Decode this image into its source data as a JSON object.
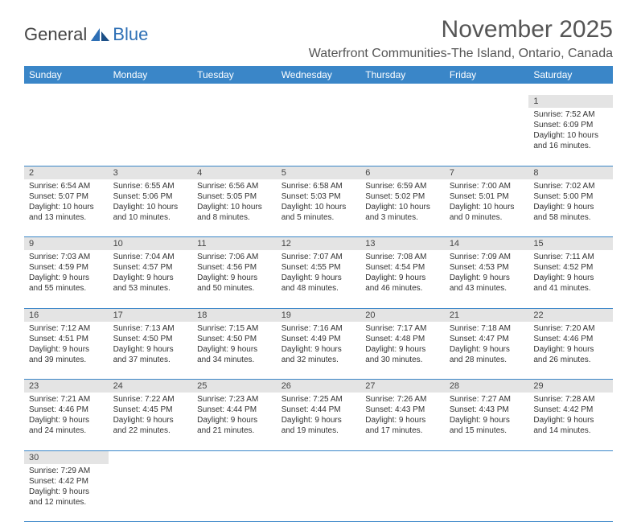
{
  "logo": {
    "part1": "General",
    "part2": "Blue"
  },
  "title": "November 2025",
  "location": "Waterfront Communities-The Island, Ontario, Canada",
  "colors": {
    "header_bg": "#3a86c8",
    "header_fg": "#ffffff",
    "daynum_bg": "#e4e4e4",
    "rule": "#3a86c8",
    "text": "#333333",
    "logo_blue": "#2d6fb5"
  },
  "daysOfWeek": [
    "Sunday",
    "Monday",
    "Tuesday",
    "Wednesday",
    "Thursday",
    "Friday",
    "Saturday"
  ],
  "firstDayOffset": 6,
  "daysInMonth": 30,
  "cells": {
    "1": {
      "sunrise": "7:52 AM",
      "sunset": "6:09 PM",
      "daylight": "10 hours and 16 minutes."
    },
    "2": {
      "sunrise": "6:54 AM",
      "sunset": "5:07 PM",
      "daylight": "10 hours and 13 minutes."
    },
    "3": {
      "sunrise": "6:55 AM",
      "sunset": "5:06 PM",
      "daylight": "10 hours and 10 minutes."
    },
    "4": {
      "sunrise": "6:56 AM",
      "sunset": "5:05 PM",
      "daylight": "10 hours and 8 minutes."
    },
    "5": {
      "sunrise": "6:58 AM",
      "sunset": "5:03 PM",
      "daylight": "10 hours and 5 minutes."
    },
    "6": {
      "sunrise": "6:59 AM",
      "sunset": "5:02 PM",
      "daylight": "10 hours and 3 minutes."
    },
    "7": {
      "sunrise": "7:00 AM",
      "sunset": "5:01 PM",
      "daylight": "10 hours and 0 minutes."
    },
    "8": {
      "sunrise": "7:02 AM",
      "sunset": "5:00 PM",
      "daylight": "9 hours and 58 minutes."
    },
    "9": {
      "sunrise": "7:03 AM",
      "sunset": "4:59 PM",
      "daylight": "9 hours and 55 minutes."
    },
    "10": {
      "sunrise": "7:04 AM",
      "sunset": "4:57 PM",
      "daylight": "9 hours and 53 minutes."
    },
    "11": {
      "sunrise": "7:06 AM",
      "sunset": "4:56 PM",
      "daylight": "9 hours and 50 minutes."
    },
    "12": {
      "sunrise": "7:07 AM",
      "sunset": "4:55 PM",
      "daylight": "9 hours and 48 minutes."
    },
    "13": {
      "sunrise": "7:08 AM",
      "sunset": "4:54 PM",
      "daylight": "9 hours and 46 minutes."
    },
    "14": {
      "sunrise": "7:09 AM",
      "sunset": "4:53 PM",
      "daylight": "9 hours and 43 minutes."
    },
    "15": {
      "sunrise": "7:11 AM",
      "sunset": "4:52 PM",
      "daylight": "9 hours and 41 minutes."
    },
    "16": {
      "sunrise": "7:12 AM",
      "sunset": "4:51 PM",
      "daylight": "9 hours and 39 minutes."
    },
    "17": {
      "sunrise": "7:13 AM",
      "sunset": "4:50 PM",
      "daylight": "9 hours and 37 minutes."
    },
    "18": {
      "sunrise": "7:15 AM",
      "sunset": "4:50 PM",
      "daylight": "9 hours and 34 minutes."
    },
    "19": {
      "sunrise": "7:16 AM",
      "sunset": "4:49 PM",
      "daylight": "9 hours and 32 minutes."
    },
    "20": {
      "sunrise": "7:17 AM",
      "sunset": "4:48 PM",
      "daylight": "9 hours and 30 minutes."
    },
    "21": {
      "sunrise": "7:18 AM",
      "sunset": "4:47 PM",
      "daylight": "9 hours and 28 minutes."
    },
    "22": {
      "sunrise": "7:20 AM",
      "sunset": "4:46 PM",
      "daylight": "9 hours and 26 minutes."
    },
    "23": {
      "sunrise": "7:21 AM",
      "sunset": "4:46 PM",
      "daylight": "9 hours and 24 minutes."
    },
    "24": {
      "sunrise": "7:22 AM",
      "sunset": "4:45 PM",
      "daylight": "9 hours and 22 minutes."
    },
    "25": {
      "sunrise": "7:23 AM",
      "sunset": "4:44 PM",
      "daylight": "9 hours and 21 minutes."
    },
    "26": {
      "sunrise": "7:25 AM",
      "sunset": "4:44 PM",
      "daylight": "9 hours and 19 minutes."
    },
    "27": {
      "sunrise": "7:26 AM",
      "sunset": "4:43 PM",
      "daylight": "9 hours and 17 minutes."
    },
    "28": {
      "sunrise": "7:27 AM",
      "sunset": "4:43 PM",
      "daylight": "9 hours and 15 minutes."
    },
    "29": {
      "sunrise": "7:28 AM",
      "sunset": "4:42 PM",
      "daylight": "9 hours and 14 minutes."
    },
    "30": {
      "sunrise": "7:29 AM",
      "sunset": "4:42 PM",
      "daylight": "9 hours and 12 minutes."
    }
  },
  "labels": {
    "sunrise": "Sunrise: ",
    "sunset": "Sunset: ",
    "daylight": "Daylight: "
  }
}
